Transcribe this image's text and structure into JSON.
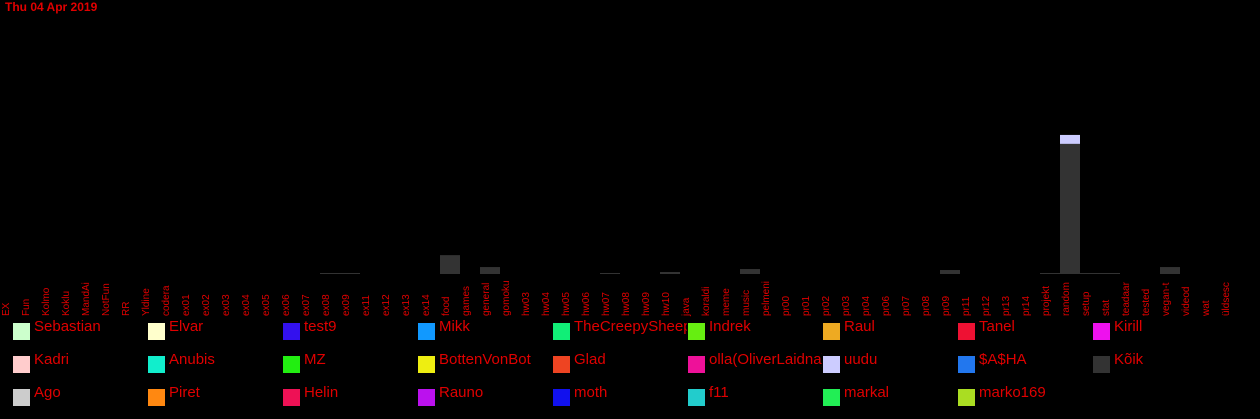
{
  "date_label": "Thu 04 Apr 2019",
  "chart_data": {
    "type": "bar",
    "stacked": true,
    "categories": [
      "EX",
      "Fun",
      "Kolmo",
      "Koklu",
      "MandAi",
      "NotFun",
      "RR",
      "Yldine",
      "codera",
      "ex01",
      "ex02",
      "ex03",
      "ex04",
      "ex05",
      "ex06",
      "ex07",
      "ex08",
      "ex09",
      "ex11",
      "ex12",
      "ex13",
      "ex14",
      "food",
      "games",
      "general",
      "gomoku",
      "hw03",
      "hw04",
      "hw05",
      "hw06",
      "hw07",
      "hw08",
      "hw09",
      "hw10",
      "java",
      "koraldi",
      "meme",
      "music",
      "pelmeni",
      "pr00",
      "pr01",
      "pr02",
      "pr03",
      "pr04",
      "pr06",
      "pr07",
      "pr08",
      "pr09",
      "pr11",
      "pr12",
      "pr13",
      "pr14",
      "projekt",
      "random",
      "setup",
      "stat",
      "teadaar",
      "tested",
      "vegan-t",
      "videod",
      "wat",
      "üldsesc"
    ],
    "series": [
      {
        "name": "Kõik",
        "color": "#333333",
        "values": [
          0,
          0,
          0,
          0,
          0,
          0,
          0,
          0,
          0,
          0,
          0,
          0,
          0,
          0,
          0,
          0,
          1,
          1,
          0,
          0,
          0,
          0,
          19,
          0,
          7,
          0,
          0,
          0,
          0,
          0,
          1,
          0,
          0,
          2,
          0,
          0,
          0,
          5,
          0,
          0,
          0,
          0,
          0,
          0,
          0,
          0,
          0,
          4,
          0,
          0,
          0,
          0,
          1,
          131,
          1,
          1,
          0,
          0,
          7,
          0,
          0,
          0
        ]
      },
      {
        "name": "uudu",
        "color": "#ccccff",
        "values": [
          0,
          0,
          0,
          0,
          0,
          0,
          0,
          0,
          0,
          0,
          0,
          0,
          0,
          0,
          0,
          0,
          0,
          0,
          0,
          0,
          0,
          0,
          0,
          0,
          0,
          0,
          0,
          0,
          0,
          0,
          0,
          0,
          0,
          0,
          0,
          0,
          0,
          0,
          0,
          0,
          0,
          0,
          0,
          0,
          0,
          0,
          0,
          0,
          0,
          0,
          0,
          0,
          0,
          9,
          0,
          0,
          0,
          0,
          0,
          0,
          0,
          0
        ]
      }
    ],
    "ylim": [
      0,
      150
    ]
  },
  "legend": [
    {
      "name": "Sebastian",
      "color": "#ccffcc"
    },
    {
      "name": "Elvar",
      "color": "#ffffcc"
    },
    {
      "name": "test9",
      "color": "#3311ee"
    },
    {
      "name": "Mikk",
      "color": "#1199ff"
    },
    {
      "name": "TheCreepySheep",
      "color": "#11ee77"
    },
    {
      "name": "Indrek",
      "color": "#66ee11"
    },
    {
      "name": "Raul",
      "color": "#eeaa22"
    },
    {
      "name": "Tanel",
      "color": "#ee1133"
    },
    {
      "name": "Kirill",
      "color": "#ee11ee"
    },
    {
      "name": "Kadri",
      "color": "#ffcccc"
    },
    {
      "name": "Anubis",
      "color": "#11eecc"
    },
    {
      "name": "MZ",
      "color": "#22ee11"
    },
    {
      "name": "BottenVonBot",
      "color": "#eeee11"
    },
    {
      "name": "Glad",
      "color": "#ee4422"
    },
    {
      "name": "olla(OliverLaidna)",
      "color": "#ee1199"
    },
    {
      "name": "uudu",
      "color": "#ccccff"
    },
    {
      "name": "$A$HA",
      "color": "#2277ee"
    },
    {
      "name": "Kõik",
      "color": "#333333"
    },
    {
      "name": "Ago",
      "color": "#cccccc"
    },
    {
      "name": "Piret",
      "color": "#ff8811"
    },
    {
      "name": "Helin",
      "color": "#ee1155"
    },
    {
      "name": "Rauno",
      "color": "#bb11ee"
    },
    {
      "name": "moth",
      "color": "#1111ee"
    },
    {
      "name": "f11",
      "color": "#22cccc"
    },
    {
      "name": "markal",
      "color": "#22ee55"
    },
    {
      "name": "marko169",
      "color": "#aadd22"
    }
  ]
}
